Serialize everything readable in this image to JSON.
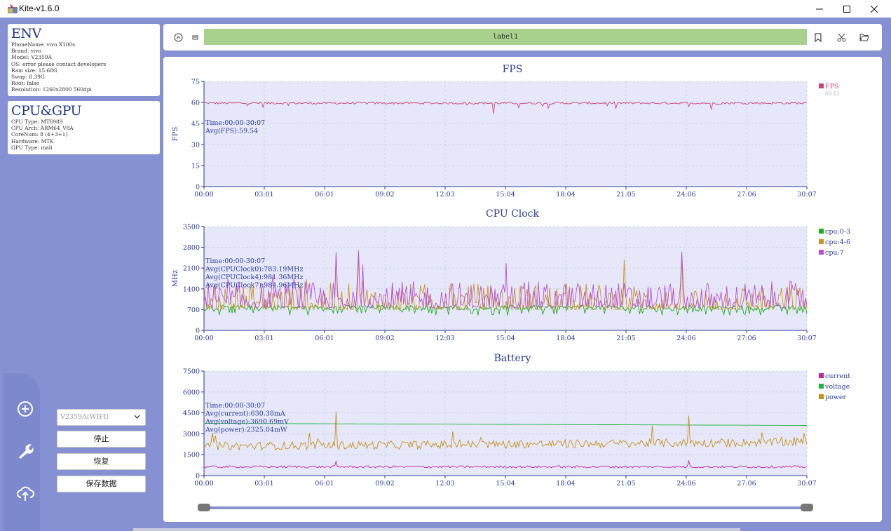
{
  "window": {
    "title": "Kite-v1.6.0"
  },
  "env": {
    "title": "ENV",
    "lines": [
      "PhoneName: vivo X100s",
      "Brand: vivo",
      "Model: V2359A",
      "OS: error please contact developers",
      "Ram size: 15.68G",
      "Swap: 8.39G",
      "Root: false",
      "Resolution: 1260x2800 560dpi"
    ]
  },
  "cpugpu": {
    "title": "CPU&GPU",
    "lines": [
      "CPU Type: MT6989",
      "CPU Arch: ARM64_V8A",
      "CoreNum: 8 (4+3+1)",
      "Hardware: MTK",
      "GPU Type: mali"
    ]
  },
  "controls": {
    "device": "V2359A(WIFI)",
    "stop": "停止",
    "resume": "恢复",
    "save": "保存数据"
  },
  "toolbar": {
    "label": "label1"
  },
  "icons": {
    "app": "kite-app-icon",
    "minimize": "minimize-icon",
    "maximize": "maximize-icon",
    "close": "close-icon",
    "rail": [
      "add-circle-icon",
      "wrench-icon",
      "upload-cloud-icon"
    ],
    "toolbar_left": [
      "circle-arrow-icon",
      "mini-window-icon"
    ],
    "toolbar_right": [
      "bookmark-icon",
      "scissors-icon",
      "folder-open-icon"
    ],
    "select_chevron": "chevron-down-icon"
  },
  "colors": {
    "background": "#8591d3",
    "plot_bg": "#e6e8f9",
    "title": "#2a3a9a",
    "fps": "#d03f76",
    "cpu0": "#18b018",
    "cpu4": "#c99321",
    "cpu7": "#b94fd6",
    "current": "#c423a8",
    "voltage": "#21b33d",
    "power": "#c4901c",
    "label_bar": "#a9d18e"
  },
  "chart_data": [
    {
      "type": "line",
      "title": "FPS",
      "ylabel": "FPS",
      "xticks": [
        "00:00",
        "03:01",
        "06:01",
        "09:02",
        "12:03",
        "15:04",
        "18:04",
        "21:05",
        "24:06",
        "27:06",
        "30:07"
      ],
      "yticks": [
        0,
        15,
        30,
        45,
        60,
        75
      ],
      "ylim": [
        0,
        75
      ],
      "grid": true,
      "legend_position": "right",
      "annotations": [
        "Time:00:00-30:07",
        "Avg(FPS):59.54"
      ],
      "series": [
        {
          "name": "FPS",
          "latest": "60.83",
          "baseline": 59.5,
          "min": 52,
          "max": 61
        }
      ]
    },
    {
      "type": "line",
      "title": "CPU Clock",
      "ylabel": "MHz",
      "xticks": [
        "00:00",
        "03:01",
        "06:01",
        "09:02",
        "12:03",
        "15:04",
        "18:04",
        "21:05",
        "24:06",
        "27:06",
        "30:07"
      ],
      "yticks": [
        0,
        700,
        1400,
        2100,
        2800,
        3500
      ],
      "ylim": [
        0,
        3500
      ],
      "grid": true,
      "legend_position": "right",
      "annotations": [
        "Time:00:00-30:07",
        "Avg(CPUClock0):783.19MHz",
        "Avg(CPUClock4):981.36MHz",
        "Avg(CPUClock7):984.96MHz"
      ],
      "series": [
        {
          "name": "cpu:0-3",
          "baseline": 783,
          "max": 950
        },
        {
          "name": "cpu:4-6",
          "baseline": 981,
          "max": 2750
        },
        {
          "name": "cpu:7",
          "baseline": 985,
          "max": 2750
        }
      ]
    },
    {
      "type": "line",
      "title": "Battery",
      "ylabel": "",
      "xticks": [
        "00:00",
        "03:01",
        "06:01",
        "09:02",
        "12:03",
        "15:04",
        "18:04",
        "21:05",
        "24:06",
        "27:06",
        "30:07"
      ],
      "yticks": [
        0,
        1500,
        3000,
        4500,
        6000,
        7500
      ],
      "ylim": [
        0,
        7500
      ],
      "grid": true,
      "legend_position": "right",
      "annotations": [
        "Time:00:00-30:07",
        "Avg(current):630.38mA",
        "Avg(voltage):3690.69mV",
        "Avg(power):2325.04mW"
      ],
      "series": [
        {
          "name": "current",
          "baseline": 630
        },
        {
          "name": "voltage",
          "start": 3750,
          "end": 3600
        },
        {
          "name": "power",
          "baseline": 2325,
          "max": 4600
        }
      ]
    }
  ],
  "range_slider": {
    "start": 0,
    "end": 1
  }
}
